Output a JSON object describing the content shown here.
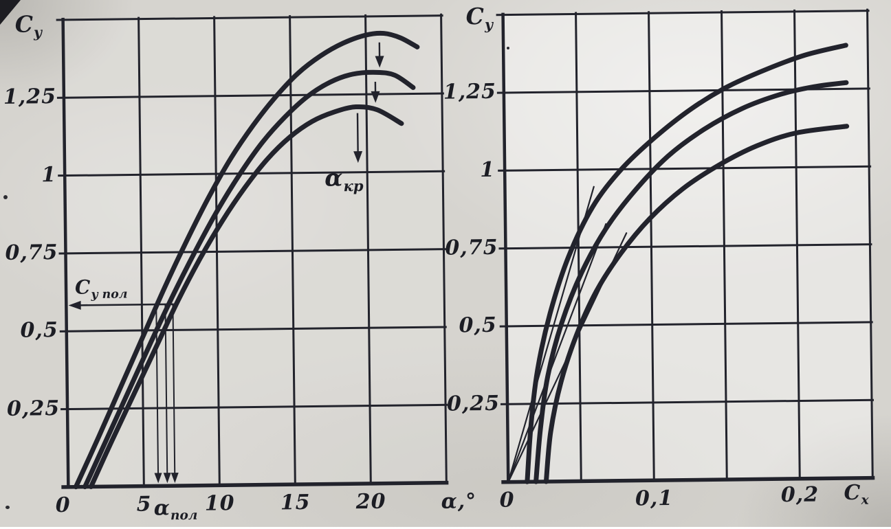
{
  "figure": {
    "paper_color": "#d6d4cf",
    "ink_color": "#22232c"
  },
  "chart_data": [
    {
      "type": "line",
      "name": "lift-coefficient-vs-angle-of-attack",
      "title": "",
      "ylabel": {
        "main": "C",
        "sub": "y"
      },
      "xlabel": "α,°",
      "xlim": [
        0,
        25
      ],
      "ylim": [
        0,
        1.5
      ],
      "grid": {
        "x_step": 5,
        "y_step": 0.25,
        "grid_on": true
      },
      "x_ticks": [
        {
          "v": 0,
          "label": "0"
        },
        {
          "v": 5,
          "label": "5"
        },
        {
          "v": 10,
          "label": "10"
        },
        {
          "v": 15,
          "label": "15"
        },
        {
          "v": 20,
          "label": "20"
        }
      ],
      "y_ticks": [
        {
          "v": 1.25,
          "label": "1,25"
        },
        {
          "v": 1.0,
          "label": "1"
        },
        {
          "v": 0.75,
          "label": "0,75"
        },
        {
          "v": 0.5,
          "label": "0,5"
        },
        {
          "v": 0.25,
          "label": "0,25"
        }
      ],
      "series": [
        {
          "name": "lift-curve-high",
          "points": [
            [
              0.5,
              0
            ],
            [
              2,
              0.155
            ],
            [
              3.5,
              0.315
            ],
            [
              5,
              0.475
            ],
            [
              6.5,
              0.635
            ],
            [
              8,
              0.785
            ],
            [
              9.5,
              0.925
            ],
            [
              11,
              1.05
            ],
            [
              12.5,
              1.155
            ],
            [
              14,
              1.245
            ],
            [
              15.5,
              1.32
            ],
            [
              17,
              1.375
            ],
            [
              18.5,
              1.415
            ],
            [
              20,
              1.44
            ],
            [
              21.2,
              1.445
            ],
            [
              22.3,
              1.43
            ],
            [
              23.4,
              1.4
            ]
          ]
        },
        {
          "name": "lift-curve-mid",
          "points": [
            [
              1.1,
              0
            ],
            [
              2.6,
              0.155
            ],
            [
              4.1,
              0.31
            ],
            [
              5.6,
              0.465
            ],
            [
              7.1,
              0.615
            ],
            [
              8.6,
              0.755
            ],
            [
              10.1,
              0.885
            ],
            [
              11.6,
              1.0
            ],
            [
              13.1,
              1.1
            ],
            [
              14.6,
              1.18
            ],
            [
              16.1,
              1.245
            ],
            [
              17.6,
              1.29
            ],
            [
              19.1,
              1.315
            ],
            [
              20.7,
              1.32
            ],
            [
              21.9,
              1.31
            ],
            [
              23.1,
              1.27
            ]
          ]
        },
        {
          "name": "lift-curve-low",
          "points": [
            [
              1.5,
              0
            ],
            [
              2.9,
              0.145
            ],
            [
              4.4,
              0.295
            ],
            [
              5.9,
              0.445
            ],
            [
              7.4,
              0.595
            ],
            [
              8.9,
              0.73
            ],
            [
              10.4,
              0.85
            ],
            [
              11.9,
              0.955
            ],
            [
              13.4,
              1.045
            ],
            [
              14.9,
              1.115
            ],
            [
              16.4,
              1.165
            ],
            [
              17.9,
              1.195
            ],
            [
              19.3,
              1.21
            ],
            [
              20.7,
              1.2
            ],
            [
              22.3,
              1.155
            ]
          ]
        }
      ],
      "annotations": {
        "cy_pol": {
          "label": {
            "main": "C",
            "sub": "y пол"
          },
          "level": 0.583,
          "arrow_from_x": 7.1,
          "arrow_to_x": 0.15
        },
        "alpha_pol": {
          "label": {
            "main": "α",
            "sub": "пол"
          },
          "values": [
            5.95,
            6.55,
            7.05
          ]
        },
        "alpha_kr": {
          "label": {
            "main": "α",
            "sub": "кр"
          }
        },
        "stall_arrows": [
          {
            "x": 20.9,
            "from": 1.416,
            "to": 1.335
          },
          {
            "x": 20.6,
            "from": 1.29,
            "to": 1.222
          },
          {
            "x": 19.4,
            "from": 1.19,
            "to": 1.03
          }
        ]
      }
    },
    {
      "type": "line",
      "name": "drag-polar-cy-vs-cx",
      "title": "",
      "ylabel": {
        "main": "C",
        "sub": "y"
      },
      "xlabel": {
        "main": "C",
        "sub": "x"
      },
      "xlim": [
        0,
        0.25
      ],
      "ylim": [
        0,
        1.5
      ],
      "grid": {
        "x_step": 0.05,
        "y_step": 0.25,
        "grid_on": true
      },
      "x_ticks": [
        {
          "v": 0,
          "label": "0"
        },
        {
          "v": 0.1,
          "label": "0,1"
        },
        {
          "v": 0.2,
          "label": "0,2"
        }
      ],
      "y_ticks": [
        {
          "v": 1.25,
          "label": "1,25"
        },
        {
          "v": 1.0,
          "label": "1"
        },
        {
          "v": 0.75,
          "label": "0,75"
        },
        {
          "v": 0.5,
          "label": "0,5"
        },
        {
          "v": 0.25,
          "label": "0,25"
        }
      ],
      "series": [
        {
          "name": "polar-high",
          "points": [
            [
              0.013,
              0
            ],
            [
              0.016,
              0.18
            ],
            [
              0.021,
              0.36
            ],
            [
              0.03,
              0.54
            ],
            [
              0.043,
              0.72
            ],
            [
              0.06,
              0.88
            ],
            [
              0.08,
              1.0
            ],
            [
              0.103,
              1.1
            ],
            [
              0.128,
              1.19
            ],
            [
              0.153,
              1.26
            ],
            [
              0.18,
              1.315
            ],
            [
              0.207,
              1.36
            ],
            [
              0.235,
              1.39
            ]
          ]
        },
        {
          "name": "polar-mid",
          "points": [
            [
              0.019,
              0
            ],
            [
              0.0225,
              0.17
            ],
            [
              0.028,
              0.34
            ],
            [
              0.038,
              0.51
            ],
            [
              0.052,
              0.67
            ],
            [
              0.069,
              0.81
            ],
            [
              0.089,
              0.93
            ],
            [
              0.112,
              1.04
            ],
            [
              0.137,
              1.125
            ],
            [
              0.163,
              1.19
            ],
            [
              0.19,
              1.235
            ],
            [
              0.213,
              1.258
            ],
            [
              0.235,
              1.27
            ]
          ]
        },
        {
          "name": "polar-low",
          "points": [
            [
              0.026,
              0
            ],
            [
              0.0295,
              0.16
            ],
            [
              0.037,
              0.32
            ],
            [
              0.048,
              0.47
            ],
            [
              0.062,
              0.61
            ],
            [
              0.079,
              0.73
            ],
            [
              0.099,
              0.84
            ],
            [
              0.122,
              0.935
            ],
            [
              0.147,
              1.01
            ],
            [
              0.173,
              1.07
            ],
            [
              0.2,
              1.11
            ],
            [
              0.235,
              1.13
            ]
          ]
        }
      ],
      "annotations": {
        "tangent_lines": [
          {
            "from": [
              0,
              0
            ],
            "to": [
              0.061,
              0.945
            ]
          },
          {
            "from": [
              0,
              0
            ],
            "to": [
              0.069,
              0.825
            ]
          },
          {
            "from": [
              0,
              0
            ],
            "to": [
              0.083,
              0.795
            ]
          }
        ]
      }
    }
  ]
}
